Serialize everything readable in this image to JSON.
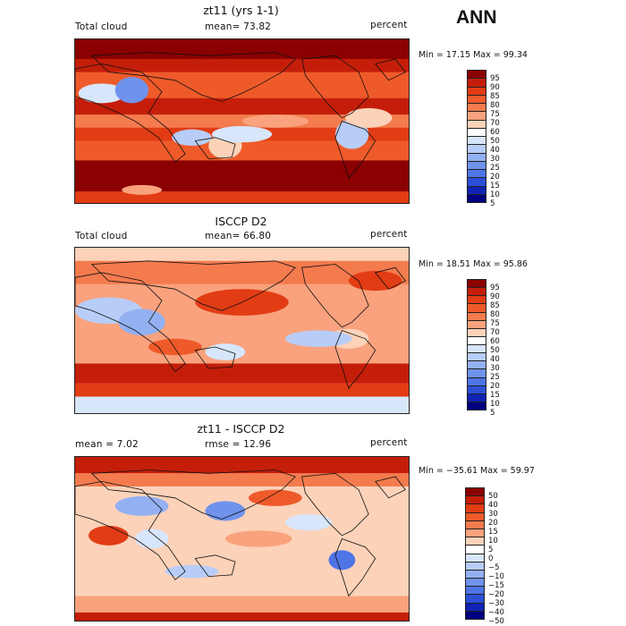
{
  "season": "ANN",
  "panels": [
    {
      "title": "zt11 (yrs 1-1)",
      "left_label": "Total cloud",
      "mid_label": "mean=  73.82",
      "right_label": "percent",
      "minmax": "Min =  17.15 Max =  99.34",
      "colorbar": {
        "levels": [
          "95",
          "90",
          "85",
          "80",
          "75",
          "70",
          "60",
          "50",
          "40",
          "30",
          "25",
          "20",
          "15",
          "10",
          "5"
        ],
        "colors": [
          "#8b0000",
          "#c41e0a",
          "#e23c14",
          "#ef5a2a",
          "#f47b4e",
          "#f9a27d",
          "#fcd2b9",
          "#ffffff",
          "#d7e6fb",
          "#b7cdf7",
          "#93b1f2",
          "#6f93ec",
          "#4e74e6",
          "#2c4fd8",
          "#0f23b4",
          "#000080"
        ]
      },
      "map_style": "model"
    },
    {
      "title": "ISCCP D2",
      "left_label": "Total cloud",
      "mid_label": "mean=  66.80",
      "right_label": "percent",
      "minmax": "Min =  18.51 Max =  95.86",
      "colorbar": {
        "levels": [
          "95",
          "90",
          "85",
          "80",
          "75",
          "70",
          "60",
          "50",
          "40",
          "30",
          "25",
          "20",
          "15",
          "10",
          "5"
        ],
        "colors": [
          "#8b0000",
          "#c41e0a",
          "#e23c14",
          "#ef5a2a",
          "#f47b4e",
          "#f9a27d",
          "#fcd2b9",
          "#ffffff",
          "#d7e6fb",
          "#b7cdf7",
          "#93b1f2",
          "#6f93ec",
          "#4e74e6",
          "#2c4fd8",
          "#0f23b4",
          "#000080"
        ]
      },
      "map_style": "obs"
    },
    {
      "title": "zt11 - ISCCP D2",
      "left_label": "mean =     7.02",
      "mid_label": "rmse =   12.96",
      "right_label": "percent",
      "minmax": "Min = −35.61 Max =  59.97",
      "colorbar": {
        "levels": [
          "50",
          "40",
          "30",
          "20",
          "15",
          "10",
          "5",
          "0",
          "−5",
          "−10",
          "−15",
          "−20",
          "−30",
          "−40",
          "−50"
        ],
        "colors": [
          "#8b0000",
          "#c41e0a",
          "#e23c14",
          "#ef5a2a",
          "#f47b4e",
          "#f9a27d",
          "#fcd2b9",
          "#ffffff",
          "#d7e6fb",
          "#b7cdf7",
          "#93b1f2",
          "#6f93ec",
          "#4e74e6",
          "#2c4fd8",
          "#0f23b4",
          "#000080"
        ]
      },
      "map_style": "diff"
    }
  ]
}
